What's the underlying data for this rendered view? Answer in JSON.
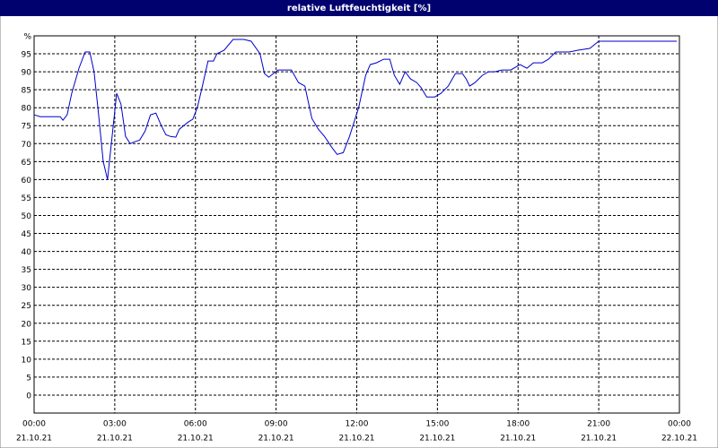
{
  "chart_data": {
    "type": "line",
    "title": "relative Luftfeuchtigkeit [%]",
    "xlim": [
      0,
      24
    ],
    "ylim": [
      -5,
      100
    ],
    "xticks": [
      {
        "value": 0,
        "label": "00:00"
      },
      {
        "value": 3,
        "label": "03:00"
      },
      {
        "value": 6,
        "label": "06:00"
      },
      {
        "value": 9,
        "label": "09:00"
      },
      {
        "value": 12,
        "label": "12:00"
      },
      {
        "value": 15,
        "label": "15:00"
      },
      {
        "value": 18,
        "label": "18:00"
      },
      {
        "value": 21,
        "label": "21:00"
      },
      {
        "value": 24,
        "label": "00:00"
      }
    ],
    "xtick_dates": [
      "21.10.21",
      "21.10.21",
      "21.10.21",
      "21.10.21",
      "21.10.21",
      "21.10.21",
      "21.10.21",
      "21.10.21",
      "22.10.21"
    ],
    "yticks": [
      0,
      5,
      10,
      15,
      20,
      25,
      30,
      35,
      40,
      45,
      50,
      55,
      60,
      65,
      70,
      75,
      80,
      85,
      90,
      95,
      {
        "value": 100,
        "label": "%"
      }
    ],
    "grid": true,
    "series": [
      {
        "name": "relative Luftfeuchtigkeit",
        "color": "#0000cc",
        "x": [
          0,
          0.23,
          0.73,
          0.97,
          1.07,
          1.23,
          1.4,
          1.67,
          1.9,
          2.07,
          2.23,
          2.4,
          2.57,
          2.73,
          2.9,
          3.07,
          3.23,
          3.4,
          3.57,
          3.73,
          3.93,
          4.13,
          4.33,
          4.53,
          4.73,
          4.9,
          5.07,
          5.27,
          5.4,
          5.73,
          5.9,
          6.07,
          6.23,
          6.47,
          6.67,
          6.8,
          7.07,
          7.4,
          7.8,
          8.07,
          8.4,
          8.57,
          8.73,
          9.07,
          9.57,
          9.83,
          10.07,
          10.33,
          10.57,
          10.8,
          11.07,
          11.27,
          11.5,
          11.73,
          12.07,
          12.33,
          12.5,
          12.73,
          13.0,
          13.23,
          13.4,
          13.6,
          13.8,
          14.0,
          14.23,
          14.4,
          14.6,
          14.9,
          15.13,
          15.4,
          15.67,
          15.93,
          16.07,
          16.2,
          16.4,
          16.67,
          16.9,
          17.13,
          17.4,
          17.73,
          18.07,
          18.33,
          18.57,
          18.9,
          19.13,
          19.4,
          19.9,
          20.23,
          20.67,
          21.0,
          23.9
        ],
        "values": [
          78,
          77.5,
          77.5,
          77.5,
          76.5,
          78,
          84,
          91,
          95.5,
          95.5,
          90,
          78,
          65,
          60,
          72,
          84,
          81,
          72,
          70,
          70.5,
          71,
          73.5,
          78,
          78.5,
          75,
          72.5,
          72,
          71.8,
          74,
          76,
          76.8,
          80,
          85,
          93,
          93,
          95,
          96,
          99,
          99,
          98.5,
          95,
          89.5,
          88.5,
          90.5,
          90.5,
          87,
          86,
          77,
          74,
          72,
          69,
          67,
          67.5,
          72,
          80,
          89,
          92,
          92.5,
          93.5,
          93.5,
          89,
          86.5,
          90,
          88,
          87,
          85.5,
          83,
          83,
          84,
          86,
          89.5,
          89.5,
          88,
          86,
          87,
          89,
          90,
          90,
          90.5,
          90.5,
          92,
          91,
          92.5,
          92.5,
          93.5,
          95.5,
          95.5,
          96,
          96.5,
          98.5,
          98.5
        ]
      }
    ]
  }
}
